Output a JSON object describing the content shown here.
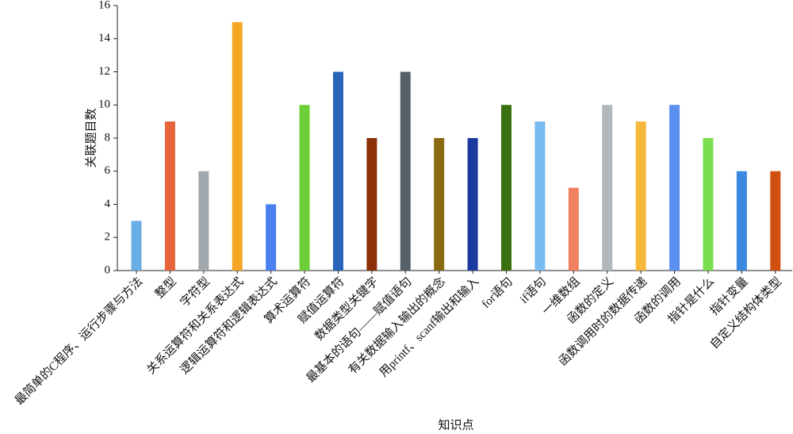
{
  "chart_data": {
    "type": "bar",
    "x_label": "知识点",
    "y_label": "关联题目数",
    "categories": [
      "最简单的C程序、运行步骤与方法",
      "整型",
      "字符型",
      "关系运算符和关系表达式",
      "逻辑运算符和逻辑表达式",
      "算术运算符",
      "赋值运算符",
      "数据类型关键字",
      "最基本的语句——赋值语句",
      "有关数据输入输出的概念",
      "用printf、scanf输出和输入",
      "for语句",
      "if语句",
      "一维数组",
      "函数的定义",
      "函数调用时的数据传递",
      "函数的调用",
      "指针是什么",
      "指针变量",
      "自定义结构体类型"
    ],
    "values": [
      3,
      9,
      6,
      15,
      4,
      10,
      12,
      8,
      12,
      8,
      8,
      10,
      9,
      5,
      10,
      9,
      10,
      8,
      6,
      6
    ],
    "colors": [
      "#6aaee6",
      "#e8643a",
      "#a0a8ae",
      "#f5a623",
      "#4a7ff0",
      "#6ccf3a",
      "#2864b8",
      "#8b3008",
      "#566068",
      "#8a6a10",
      "#1a3aa0",
      "#3a7010",
      "#78bcf0",
      "#f08060",
      "#b0b8bc",
      "#f5b83a",
      "#5a90f0",
      "#7ade50",
      "#3a88e0",
      "#d05010"
    ],
    "ylim": [
      0,
      16
    ],
    "yticks": [
      0,
      2,
      4,
      6,
      8,
      10,
      12,
      14,
      16
    ]
  }
}
